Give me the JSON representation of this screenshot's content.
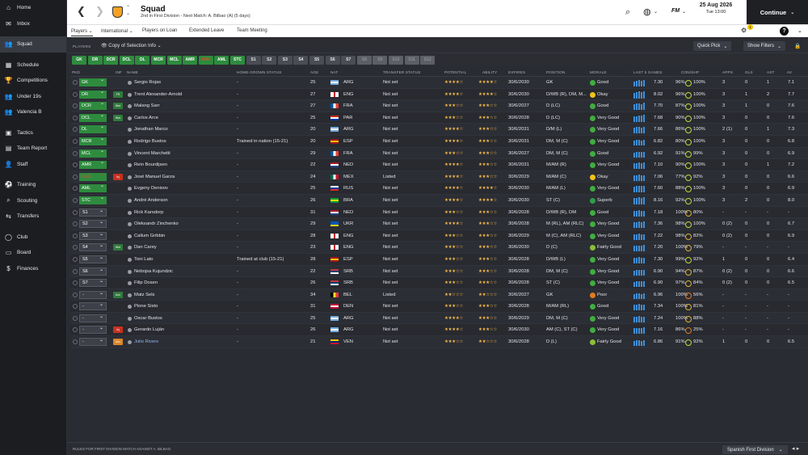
{
  "sidebar": {
    "items": [
      {
        "label": "Home",
        "icon": "home-icon",
        "glyph": "⌂"
      },
      {
        "label": "Inbox",
        "icon": "inbox-icon",
        "glyph": "✉"
      },
      {
        "label": "Squad",
        "icon": "squad-icon",
        "glyph": "👥",
        "active": true
      },
      {
        "label": "Schedule",
        "icon": "calendar-icon",
        "glyph": "▦"
      },
      {
        "label": "Competitions",
        "icon": "trophy-icon",
        "glyph": "🏆"
      },
      {
        "label": "Under 19s",
        "icon": "youth-icon",
        "glyph": "👥"
      },
      {
        "label": "Valencia B",
        "icon": "reserve-icon",
        "glyph": "👥"
      },
      {
        "label": "Tactics",
        "icon": "tactics-icon",
        "glyph": "▣"
      },
      {
        "label": "Team Report",
        "icon": "report-icon",
        "glyph": "▤"
      },
      {
        "label": "Staff",
        "icon": "staff-icon",
        "glyph": "👤"
      },
      {
        "label": "Training",
        "icon": "training-icon",
        "glyph": "⚽"
      },
      {
        "label": "Scouting",
        "icon": "scouting-icon",
        "glyph": "⌕"
      },
      {
        "label": "Transfers",
        "icon": "transfers-icon",
        "glyph": "⇆"
      },
      {
        "label": "Club",
        "icon": "club-icon",
        "glyph": "◯"
      },
      {
        "label": "Board",
        "icon": "board-icon",
        "glyph": "▭"
      },
      {
        "label": "Finances",
        "icon": "finances-icon",
        "glyph": "$"
      }
    ]
  },
  "header": {
    "title": "Squad",
    "subtitle": "2nd in First Division - Next Match: A. Bilbao (A) (5 days)",
    "date": "25 Aug 2026",
    "time": "Tue 13:00",
    "continue_label": "Continue",
    "fm_label": "FM"
  },
  "tabs": [
    {
      "label": "Players",
      "dropdown": true,
      "active": true
    },
    {
      "label": "International",
      "dropdown": true
    },
    {
      "label": "Players on Loan"
    },
    {
      "label": "Extended Leave"
    },
    {
      "label": "Team Meeting"
    }
  ],
  "notif_count": "1",
  "toolbar": {
    "players_label": "PLAYERS",
    "selection_label": "Copy of Selection Info",
    "quick_pick": "Quick Pick",
    "show_filters": "Show Filters"
  },
  "positions": [
    {
      "label": "GK",
      "state": "filled"
    },
    {
      "label": "DR",
      "state": "filled"
    },
    {
      "label": "DCR",
      "state": "filled"
    },
    {
      "label": "DCL",
      "state": "filled"
    },
    {
      "label": "DL",
      "state": "filled"
    },
    {
      "label": "MCR",
      "state": "filled"
    },
    {
      "label": "MCL",
      "state": "filled"
    },
    {
      "label": "AMR",
      "state": "filled"
    },
    {
      "label": "AMC",
      "state": "injured"
    },
    {
      "label": "AML",
      "state": "filled"
    },
    {
      "label": "STC",
      "state": "filled"
    },
    {
      "label": "S1",
      "state": "sub"
    },
    {
      "label": "S2",
      "state": "sub"
    },
    {
      "label": "S3",
      "state": "sub"
    },
    {
      "label": "S4",
      "state": "sub"
    },
    {
      "label": "S5",
      "state": "sub"
    },
    {
      "label": "S6",
      "state": "sub"
    },
    {
      "label": "S7",
      "state": "sub"
    },
    {
      "label": "S8",
      "state": "empty"
    },
    {
      "label": "S9",
      "state": "empty"
    },
    {
      "label": "S10",
      "state": "empty"
    },
    {
      "label": "S11",
      "state": "empty"
    },
    {
      "label": "S12",
      "state": "empty"
    }
  ],
  "columns": [
    "PKD",
    "INF",
    "NAME",
    "HOME-GROWN STATUS",
    "AGE",
    "NAT",
    "TRANSFER STATUS",
    "POTENTIAL",
    "ABILITY",
    "EXPIRES",
    "POSITION",
    "MORALE",
    "LAST 5 GAMES",
    "CON/SHP",
    "APPS",
    "GLS",
    "AST",
    "AV"
  ],
  "players": [
    {
      "pkd": "GK",
      "type": "start",
      "inf": "",
      "name": "Sergio Rojas",
      "hg": "-",
      "age": "25",
      "nat": "ARG",
      "ts": "Not set",
      "pot": "★★★★☆",
      "abi": "★★★★☆",
      "exp": "30/6/2030",
      "pos": "GK",
      "morale": "Good",
      "m": "good",
      "last5": "7.30",
      "bars": [
        5,
        6,
        7,
        6,
        7
      ],
      "cond": "96%",
      "shp": "100%",
      "apps": "3",
      "gls": "0",
      "ast": "1",
      "av": "7.1"
    },
    {
      "pkd": "DR",
      "type": "start",
      "inf": "FR",
      "name": "Trent Alexander-Arnold",
      "hg": "-",
      "age": "27",
      "nat": "ENG",
      "ts": "Not set",
      "pot": "★★★★☆",
      "abi": "★★★★☆",
      "exp": "30/6/2030",
      "pos": "D/WB (R), DM, M...",
      "morale": "Okay",
      "m": "okay",
      "last5": "8.02",
      "bars": [
        6,
        7,
        8,
        7,
        8
      ],
      "cond": "96%",
      "shp": "100%",
      "apps": "3",
      "gls": "1",
      "ast": "2",
      "av": "7.7"
    },
    {
      "pkd": "DCR",
      "type": "start",
      "inf": "Wnt",
      "name": "Malang Sarr",
      "hg": "-",
      "age": "27",
      "nat": "FRA",
      "ts": "Not set",
      "pot": "★★★☆☆",
      "abi": "★★★☆☆",
      "exp": "30/6/2027",
      "pos": "D (LC)",
      "morale": "Good",
      "m": "good",
      "last5": "7.70",
      "bars": [
        6,
        7,
        7,
        6,
        8
      ],
      "cond": "87%",
      "shp": "100%",
      "apps": "3",
      "gls": "1",
      "ast": "0",
      "av": "7.6"
    },
    {
      "pkd": "DCL",
      "type": "start",
      "inf": "Wnt",
      "name": "Carlos Arce",
      "hg": "-",
      "age": "25",
      "nat": "PAR",
      "ts": "Not set",
      "pot": "★★★☆☆",
      "abi": "★★★☆☆",
      "exp": "30/6/2028",
      "pos": "D (LC)",
      "morale": "Very Good",
      "m": "vgood",
      "last5": "7.68",
      "bars": [
        6,
        6,
        7,
        7,
        8
      ],
      "cond": "90%",
      "shp": "100%",
      "apps": "3",
      "gls": "0",
      "ast": "0",
      "av": "7.6"
    },
    {
      "pkd": "DL",
      "type": "start",
      "inf": "",
      "name": "Jonathan Marco",
      "hg": "-",
      "age": "20",
      "nat": "ARG",
      "ts": "Not set",
      "pot": "★★★★☆",
      "abi": "★★★☆☆",
      "exp": "30/6/2031",
      "pos": "D/M (L)",
      "morale": "Very Good",
      "m": "vgood",
      "last5": "7.66",
      "bars": [
        6,
        7,
        7,
        6,
        7
      ],
      "cond": "86%",
      "shp": "100%",
      "apps": "2 (1)",
      "gls": "0",
      "ast": "1",
      "av": "7.3"
    },
    {
      "pkd": "MCR",
      "type": "start",
      "inf": "",
      "name": "Rodrigo Bustos",
      "hg": "Trained in nation (15-21)",
      "age": "20",
      "nat": "ESP",
      "ts": "Not set",
      "pot": "★★★★☆",
      "abi": "★★★☆☆",
      "exp": "30/6/2031",
      "pos": "DM, M (C)",
      "morale": "Very Good",
      "m": "vgood",
      "last5": "6.82",
      "bars": [
        5,
        6,
        6,
        5,
        6
      ],
      "cond": "80%",
      "shp": "100%",
      "apps": "3",
      "gls": "0",
      "ast": "0",
      "av": "6.8"
    },
    {
      "pkd": "MCL",
      "type": "start",
      "inf": "",
      "name": "Vincent Marchetti",
      "hg": "-",
      "age": "29",
      "nat": "FRA",
      "ts": "Not set",
      "pot": "★★★☆☆",
      "abi": "★★★☆☆",
      "exp": "30/6/2027",
      "pos": "DM, M (C)",
      "morale": "Good",
      "m": "good",
      "last5": "6.92",
      "bars": [
        5,
        6,
        6,
        6,
        6
      ],
      "cond": "91%",
      "shp": "99%",
      "apps": "3",
      "gls": "0",
      "ast": "0",
      "av": "6.9"
    },
    {
      "pkd": "AMR",
      "type": "start",
      "inf": "",
      "name": "Rein Bourdijsen",
      "hg": "-",
      "age": "22",
      "nat": "NED",
      "ts": "Not set",
      "pot": "★★★★☆",
      "abi": "★★★☆☆",
      "exp": "30/6/2031",
      "pos": "M/AM (R)",
      "morale": "Very Good",
      "m": "vgood",
      "last5": "7.10",
      "bars": [
        6,
        6,
        7,
        6,
        7
      ],
      "cond": "90%",
      "shp": "100%",
      "apps": "3",
      "gls": "0",
      "ast": "1",
      "av": "7.2"
    },
    {
      "pkd": "AMC",
      "type": "injured",
      "inf": "Inj",
      "name": "José Manuel Garza",
      "hg": "-",
      "age": "24",
      "nat": "MEX",
      "ts": "Listed",
      "pot": "★★★★☆",
      "abi": "★★★☆☆",
      "exp": "30/6/2029",
      "pos": "M/AM (C)",
      "morale": "Okay",
      "m": "okay",
      "last5": "7.06",
      "bars": [
        6,
        6,
        7,
        6,
        6
      ],
      "cond": "77%",
      "shp": "92%",
      "apps": "3",
      "gls": "0",
      "ast": "0",
      "av": "6.6"
    },
    {
      "pkd": "AML",
      "type": "start",
      "inf": "",
      "name": "Evgeny Denisov",
      "hg": "-",
      "age": "25",
      "nat": "RUS",
      "ts": "Not set",
      "pot": "★★★★☆",
      "abi": "★★★★☆",
      "exp": "30/6/2030",
      "pos": "M/AM (L)",
      "morale": "Very Good",
      "m": "vgood",
      "last5": "7.60",
      "bars": [
        6,
        7,
        7,
        7,
        7
      ],
      "cond": "88%",
      "shp": "100%",
      "apps": "3",
      "gls": "0",
      "ast": "0",
      "av": "6.9"
    },
    {
      "pkd": "STC",
      "type": "start",
      "inf": "",
      "name": "André Anderson",
      "hg": "-",
      "age": "26",
      "nat": "BRA",
      "ts": "Not set",
      "pot": "★★★★☆",
      "abi": "★★★★☆",
      "exp": "30/6/2030",
      "pos": "ST (C)",
      "morale": "Superb",
      "m": "superb",
      "last5": "8.16",
      "bars": [
        7,
        7,
        8,
        7,
        8
      ],
      "cond": "92%",
      "shp": "100%",
      "apps": "3",
      "gls": "2",
      "ast": "0",
      "av": "8.0"
    },
    {
      "pkd": "S1",
      "type": "sub",
      "inf": "",
      "name": "Rick Karsdorp",
      "hg": "-",
      "age": "31",
      "nat": "NED",
      "ts": "Not set",
      "pot": "★★★☆☆",
      "abi": "★★★☆☆",
      "exp": "30/6/2028",
      "pos": "D/WB (R), DM",
      "morale": "Good",
      "m": "good",
      "last5": "7.18",
      "bars": [
        6,
        6,
        7,
        6,
        6
      ],
      "cond": "100%",
      "shp": "80%",
      "apps": "-",
      "gls": "-",
      "ast": "-",
      "av": "-"
    },
    {
      "pkd": "S2",
      "type": "sub",
      "inf": "",
      "name": "Oleksandr Zinchenko",
      "hg": "-",
      "age": "29",
      "nat": "UKR",
      "ts": "Not set",
      "pot": "★★★★☆",
      "abi": "★★★☆☆",
      "exp": "30/6/2028",
      "pos": "M (RL), AM (RLC)",
      "morale": "Very Good",
      "m": "vgood",
      "last5": "7.36",
      "bars": [
        6,
        6,
        7,
        6,
        7
      ],
      "cond": "98%",
      "shp": "100%",
      "apps": "0 (2)",
      "gls": "0",
      "ast": "0",
      "av": "6.7"
    },
    {
      "pkd": "S3",
      "type": "sub",
      "inf": "",
      "name": "Callum Gribbin",
      "hg": "-",
      "age": "28",
      "nat": "ENG",
      "ts": "Not set",
      "pot": "★★★☆☆",
      "abi": "★★★☆☆",
      "exp": "30/6/2029",
      "pos": "M (C), AM (RLC)",
      "morale": "Very Good",
      "m": "vgood",
      "last5": "7.22",
      "bars": [
        6,
        6,
        7,
        6,
        6
      ],
      "cond": "98%",
      "shp": "82%",
      "apps": "0 (2)",
      "gls": "0",
      "ast": "0",
      "av": "6.9"
    },
    {
      "pkd": "S4",
      "type": "sub",
      "inf": "Wnt",
      "name": "Dan Carey",
      "hg": "-",
      "age": "23",
      "nat": "ENG",
      "ts": "Not set",
      "pot": "★★★☆☆",
      "abi": "★★★☆☆",
      "exp": "30/6/2030",
      "pos": "D (C)",
      "morale": "Fairly Good",
      "m": "fgood",
      "last5": "7.20",
      "bars": [
        6,
        6,
        6,
        6,
        7
      ],
      "cond": "100%",
      "shp": "79%",
      "apps": "-",
      "gls": "-",
      "ast": "-",
      "av": "-"
    },
    {
      "pkd": "S5",
      "type": "sub",
      "inf": "",
      "name": "Toni Lato",
      "hg": "Trained at club (15-21)",
      "age": "28",
      "nat": "ESP",
      "ts": "Not set",
      "pot": "★★★☆☆",
      "abi": "★★★☆☆",
      "exp": "30/6/2028",
      "pos": "D/WB (L)",
      "morale": "Very Good",
      "m": "vgood",
      "last5": "7.30",
      "bars": [
        6,
        6,
        7,
        6,
        6
      ],
      "cond": "99%",
      "shp": "92%",
      "apps": "1",
      "gls": "0",
      "ast": "0",
      "av": "6.4"
    },
    {
      "pkd": "S6",
      "type": "sub",
      "inf": "",
      "name": "Nebojsa Kujundzic",
      "hg": "-",
      "age": "22",
      "nat": "SRB",
      "ts": "Not set",
      "pot": "★★★☆☆",
      "abi": "★★★☆☆",
      "exp": "30/6/2028",
      "pos": "DM, M (C)",
      "morale": "Very Good",
      "m": "vgood",
      "last5": "6.90",
      "bars": [
        5,
        6,
        6,
        6,
        6
      ],
      "cond": "94%",
      "shp": "87%",
      "apps": "0 (2)",
      "gls": "0",
      "ast": "0",
      "av": "6.6"
    },
    {
      "pkd": "S7",
      "type": "sub",
      "inf": "",
      "name": "Filip Dosen",
      "hg": "-",
      "age": "26",
      "nat": "SRB",
      "ts": "Not set",
      "pot": "★★★☆☆",
      "abi": "★★★☆☆",
      "exp": "30/6/2028",
      "pos": "ST (C)",
      "morale": "Very Good",
      "m": "vgood",
      "last5": "6.90",
      "bars": [
        5,
        6,
        6,
        6,
        6
      ],
      "cond": "97%",
      "shp": "84%",
      "apps": "0 (2)",
      "gls": "0",
      "ast": "0",
      "av": "6.5"
    },
    {
      "pkd": "-",
      "type": "none",
      "inf": "Unh",
      "name": "Matz Sels",
      "hg": "-",
      "age": "34",
      "nat": "BEL",
      "ts": "Listed",
      "pot": "★★☆☆☆",
      "abi": "★★☆☆☆",
      "exp": "30/6/2027",
      "pos": "GK",
      "morale": "Poor",
      "m": "poor",
      "last5": "6.96",
      "bars": [
        5,
        6,
        6,
        5,
        6
      ],
      "cond": "100%",
      "shp": "56%",
      "apps": "-",
      "gls": "-",
      "ast": "-",
      "av": "-"
    },
    {
      "pkd": "-",
      "type": "none",
      "inf": "",
      "name": "Pione Sisto",
      "hg": "-",
      "age": "31",
      "nat": "DEN",
      "ts": "Not set",
      "pot": "★★★☆☆",
      "abi": "★★★☆☆",
      "exp": "30/6/2028",
      "pos": "M/AM (RL)",
      "morale": "Good",
      "m": "good",
      "last5": "7.34",
      "bars": [
        6,
        6,
        7,
        6,
        6
      ],
      "cond": "100%",
      "shp": "81%",
      "apps": "-",
      "gls": "-",
      "ast": "-",
      "av": "-"
    },
    {
      "pkd": "-",
      "type": "none",
      "inf": "",
      "name": "Oscar Bustos",
      "hg": "-",
      "age": "25",
      "nat": "ARG",
      "ts": "Not set",
      "pot": "★★★★☆",
      "abi": "★★★☆☆",
      "exp": "30/6/2029",
      "pos": "DM, M (C)",
      "morale": "Very Good",
      "m": "vgood",
      "last5": "7.24",
      "bars": [
        6,
        6,
        7,
        6,
        6
      ],
      "cond": "100%",
      "shp": "88%",
      "apps": "-",
      "gls": "-",
      "ast": "-",
      "av": "-"
    },
    {
      "pkd": "-",
      "type": "none",
      "inf": "Inj",
      "name": "Gerardo Luján",
      "hg": "-",
      "age": "26",
      "nat": "ARG",
      "ts": "Not set",
      "pot": "★★★★☆",
      "abi": "★★★☆☆",
      "exp": "30/6/2030",
      "pos": "AM (C), ST (C)",
      "morale": "Very Good",
      "m": "vgood",
      "last5": "7.16",
      "bars": [
        6,
        6,
        6,
        6,
        7
      ],
      "cond": "86%",
      "shp": "25%",
      "apps": "-",
      "gls": "-",
      "ast": "-",
      "av": "-"
    },
    {
      "pkd": "-",
      "type": "none",
      "inf": "Unv",
      "name": "Julio Rivero",
      "hg": "-",
      "age": "21",
      "nat": "VEN",
      "ts": "Not set",
      "pot": "★★★☆☆",
      "abi": "★★☆☆☆",
      "exp": "30/6/2028",
      "pos": "D (L)",
      "morale": "Fairly Good",
      "m": "fgood",
      "last5": "6.86",
      "bars": [
        5,
        6,
        6,
        5,
        6
      ],
      "cond": "91%",
      "shp": "92%",
      "apps": "1",
      "gls": "0",
      "ast": "0",
      "av": "6.5"
    }
  ],
  "footer": {
    "rules": "RULES FOR FIRST DIVISION MATCH AGAINST A. BILBAO",
    "competition": "Spanish First Division"
  },
  "colors": {
    "accent_green": "#2e8b3e",
    "injured_red": "#c8301e",
    "bars_blue": "#3f8fd8",
    "morale_good": "#3fae3f",
    "morale_okay": "#f2c21b",
    "morale_poor": "#e07b1f"
  }
}
